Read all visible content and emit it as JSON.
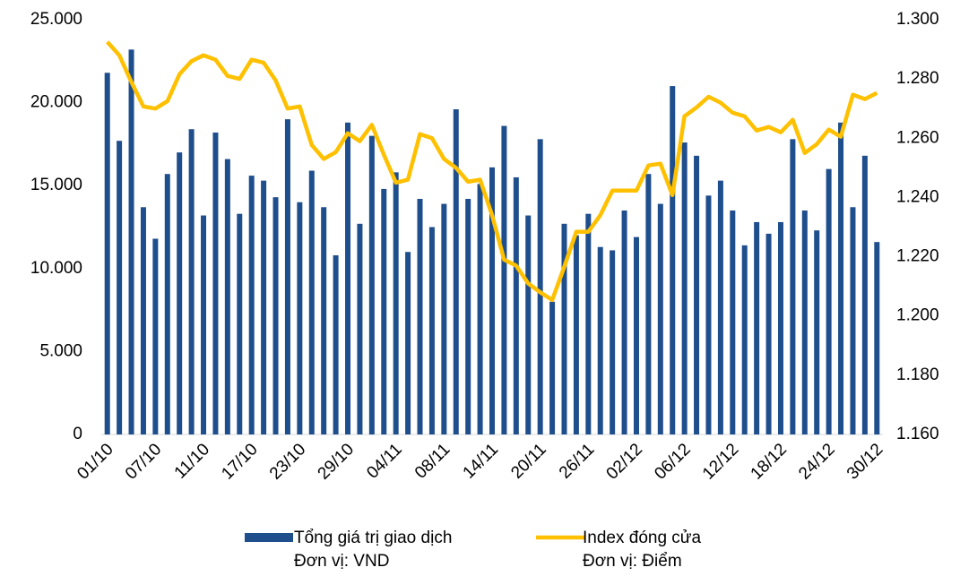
{
  "chart_data": {
    "type": "bar_line",
    "categories": [
      "01/10",
      null,
      null,
      null,
      "07/10",
      null,
      null,
      null,
      "11/10",
      null,
      null,
      null,
      "17/10",
      null,
      null,
      null,
      "23/10",
      null,
      null,
      null,
      "29/10",
      null,
      null,
      null,
      "04/11",
      null,
      null,
      null,
      "08/11",
      null,
      null,
      null,
      "14/11",
      null,
      null,
      null,
      "20/11",
      null,
      null,
      null,
      "26/11",
      null,
      null,
      null,
      "02/12",
      null,
      null,
      null,
      "06/12",
      null,
      null,
      null,
      "12/12",
      null,
      null,
      null,
      "18/12",
      null,
      null,
      null,
      "24/12",
      null,
      null,
      null,
      "30/12"
    ],
    "series": [
      {
        "name": "Tổng giá trị giao dịch",
        "unit_label": "Đơn vị: VND",
        "type": "bar",
        "color": "#1f4e8c",
        "values": [
          21800,
          17700,
          23200,
          13700,
          11800,
          15700,
          17000,
          18400,
          13200,
          18200,
          16600,
          13300,
          15600,
          15300,
          14300,
          19000,
          14000,
          15900,
          13700,
          10800,
          18800,
          12700,
          18000,
          14800,
          15800,
          11000,
          14200,
          12500,
          13900,
          19600,
          14200,
          15100,
          16100,
          18600,
          15500,
          13200,
          17800,
          8000,
          12700,
          12000,
          13300,
          11300,
          11100,
          13500,
          11900,
          15700,
          13900,
          21000,
          17600,
          16800,
          14400,
          15300,
          13500,
          11400,
          12800,
          12100,
          12800,
          17800,
          13500,
          12300,
          16000,
          18800,
          13700,
          16800,
          11600
        ]
      },
      {
        "name": "Index đóng cửa",
        "unit_label": "Đơn vị: Điểm",
        "type": "line",
        "axis": "y2",
        "color": "#ffc000",
        "values": [
          1292.5,
          1288,
          1279,
          1270.7,
          1270,
          1272.5,
          1281.6,
          1286,
          1288,
          1286.5,
          1281,
          1280,
          1286.5,
          1285.5,
          1279.5,
          1270,
          1270.7,
          1257.7,
          1253,
          1255.3,
          1261.7,
          1259,
          1264.5,
          1254.4,
          1245,
          1246,
          1261.4,
          1260,
          1253,
          1250,
          1245.3,
          1246,
          1234,
          1219,
          1217,
          1211,
          1208,
          1205.4,
          1216.6,
          1228.4,
          1228.4,
          1234,
          1242.3,
          1242.3,
          1242.3,
          1250.8,
          1251.4,
          1240.8,
          1267.4,
          1270.4,
          1274,
          1272,
          1268.6,
          1267.4,
          1262.6,
          1263.8,
          1262,
          1266.2,
          1255,
          1258,
          1262.9,
          1260.5,
          1274.7,
          1273.2,
          1275.3
        ]
      }
    ],
    "ylim": [
      0,
      25000
    ],
    "yticks": [
      0,
      {
        "value": 5000,
        "label": "5.000"
      },
      {
        "value": 10000,
        "label": "10.000"
      },
      {
        "value": 15000,
        "label": "15.000"
      },
      {
        "value": 20000,
        "label": "20.000"
      },
      {
        "value": 25000,
        "label": "25.000"
      }
    ],
    "y2lim": [
      1160,
      1300
    ],
    "y2ticks": [
      {
        "value": 1160,
        "label": "1.160"
      },
      {
        "value": 1180,
        "label": "1.180"
      },
      {
        "value": 1200,
        "label": "1.200"
      },
      {
        "value": 1220,
        "label": "1.220"
      },
      {
        "value": 1240,
        "label": "1.240"
      },
      {
        "value": 1260,
        "label": "1.260"
      },
      {
        "value": 1280,
        "label": "1.280"
      },
      {
        "value": 1300,
        "label": "1.300"
      }
    ],
    "legend": "bottom"
  }
}
